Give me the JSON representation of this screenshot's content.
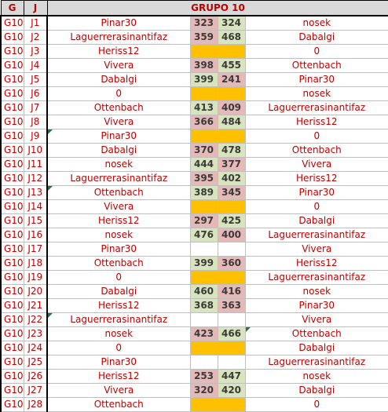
{
  "header": {
    "col_g": "G",
    "col_j": "J",
    "title": "GRUPO 10"
  },
  "colors": {
    "win": "#d8e4bc",
    "lose": "#e6b9b8",
    "pending": "#ffc000",
    "text": "#c00000",
    "comment_marker": "#1e7b34"
  },
  "rows": [
    {
      "g": "G10",
      "j": "J1",
      "a": "Pinar30",
      "s1": "323",
      "s2": "324",
      "b": "nosek",
      "c1": "lose",
      "c2": "win"
    },
    {
      "g": "G10",
      "j": "J2",
      "a": "Laguerrerasinantifaz",
      "s1": "359",
      "s2": "468",
      "b": "Dabalgi",
      "c1": "lose",
      "c2": "win"
    },
    {
      "g": "G10",
      "j": "J3",
      "a": "Heriss12",
      "s1": "",
      "s2": "",
      "b": "0",
      "c1": "pend",
      "c2": "pend"
    },
    {
      "g": "G10",
      "j": "J4",
      "a": "Vivera",
      "s1": "398",
      "s2": "455",
      "b": "Ottenbach",
      "c1": "lose",
      "c2": "win"
    },
    {
      "g": "G10",
      "j": "J5",
      "a": "Dabalgi",
      "s1": "399",
      "s2": "241",
      "b": "Pinar30",
      "c1": "win",
      "c2": "lose"
    },
    {
      "g": "G10",
      "j": "J6",
      "a": "0",
      "s1": "",
      "s2": "",
      "b": "nosek",
      "c1": "pend",
      "c2": "pend"
    },
    {
      "g": "G10",
      "j": "J7",
      "a": "Ottenbach",
      "s1": "413",
      "s2": "409",
      "b": "Laguerrerasinantifaz",
      "c1": "win",
      "c2": "lose"
    },
    {
      "g": "G10",
      "j": "J8",
      "a": "Vivera",
      "s1": "366",
      "s2": "484",
      "b": "Heriss12",
      "c1": "lose",
      "c2": "win"
    },
    {
      "g": "G10",
      "j": "J9",
      "a": "Pinar30",
      "s1": "",
      "s2": "",
      "b": "0",
      "c1": "pend",
      "c2": "pend"
    },
    {
      "g": "G10",
      "j": "J10",
      "a": "Dabalgi",
      "s1": "370",
      "s2": "478",
      "b": "Ottenbach",
      "c1": "lose",
      "c2": "win"
    },
    {
      "g": "G10",
      "j": "J11",
      "a": "nosek",
      "s1": "444",
      "s2": "377",
      "b": "Vivera",
      "c1": "win",
      "c2": "lose"
    },
    {
      "g": "G10",
      "j": "J12",
      "a": "Laguerrerasinantifaz",
      "s1": "395",
      "s2": "402",
      "b": "Heriss12",
      "c1": "lose",
      "c2": "win"
    },
    {
      "g": "G10",
      "j": "J13",
      "a": "Ottenbach",
      "s1": "389",
      "s2": "345",
      "b": "Pinar30",
      "c1": "win",
      "c2": "lose"
    },
    {
      "g": "G10",
      "j": "J14",
      "a": "Vivera",
      "s1": "",
      "s2": "",
      "b": "0",
      "c1": "pend",
      "c2": "pend"
    },
    {
      "g": "G10",
      "j": "J15",
      "a": "Heriss12",
      "s1": "297",
      "s2": "425",
      "b": "Dabalgi",
      "c1": "lose",
      "c2": "win"
    },
    {
      "g": "G10",
      "j": "J16",
      "a": "nosek",
      "s1": "476",
      "s2": "400",
      "b": "Laguerrerasinantifaz",
      "c1": "win",
      "c2": "lose"
    },
    {
      "g": "G10",
      "j": "J17",
      "a": "Pinar30",
      "s1": "",
      "s2": "",
      "b": "Vivera",
      "c1": "blank",
      "c2": "blank"
    },
    {
      "g": "G10",
      "j": "J18",
      "a": "Ottenbach",
      "s1": "399",
      "s2": "360",
      "b": "Heriss12",
      "c1": "win",
      "c2": "lose"
    },
    {
      "g": "G10",
      "j": "J19",
      "a": "0",
      "s1": "",
      "s2": "",
      "b": "Laguerrerasinantifaz",
      "c1": "pend",
      "c2": "pend"
    },
    {
      "g": "G10",
      "j": "J20",
      "a": "Dabalgi",
      "s1": "460",
      "s2": "416",
      "b": "nosek",
      "c1": "win",
      "c2": "lose"
    },
    {
      "g": "G10",
      "j": "J21",
      "a": "Heriss12",
      "s1": "368",
      "s2": "363",
      "b": "Pinar30",
      "c1": "win",
      "c2": "lose"
    },
    {
      "g": "G10",
      "j": "J22",
      "a": "Laguerrerasinantifaz",
      "s1": "",
      "s2": "",
      "b": "Vivera",
      "c1": "blank",
      "c2": "blank"
    },
    {
      "g": "G10",
      "j": "J23",
      "a": "nosek",
      "s1": "423",
      "s2": "466",
      "b": "Ottenbach",
      "c1": "lose",
      "c2": "win"
    },
    {
      "g": "G10",
      "j": "J24",
      "a": "0",
      "s1": "",
      "s2": "",
      "b": "Dabalgi",
      "c1": "pend",
      "c2": "pend"
    },
    {
      "g": "G10",
      "j": "J25",
      "a": "Pinar30",
      "s1": "",
      "s2": "",
      "b": "Laguerrerasinantifaz",
      "c1": "blank",
      "c2": "blank"
    },
    {
      "g": "G10",
      "j": "J26",
      "a": "Heriss12",
      "s1": "253",
      "s2": "447",
      "b": "nosek",
      "c1": "lose",
      "c2": "win"
    },
    {
      "g": "G10",
      "j": "J27",
      "a": "Vivera",
      "s1": "320",
      "s2": "420",
      "b": "Dabalgi",
      "c1": "lose",
      "c2": "win"
    },
    {
      "g": "G10",
      "j": "J28",
      "a": "Ottenbach",
      "s1": "",
      "s2": "",
      "b": "0",
      "c1": "pend",
      "c2": "pend"
    }
  ]
}
